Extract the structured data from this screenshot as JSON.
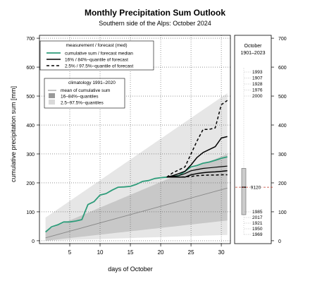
{
  "header": {
    "title": "Monthly Precipitation Sum Outlook",
    "subtitle": "Southern side of the Alps: October 2024"
  },
  "legend_measure": {
    "title": "measurement / forecast (med)",
    "items": [
      "cumulative sum / forecast median",
      "16% / 84%–quantile of forecast",
      "2.5% / 97.5%–quantile of forecast"
    ]
  },
  "legend_clim": {
    "title": "climatology 1991–2020",
    "items": [
      "mean of cumulative sum",
      "16–84%–quantiles",
      "2.5–97.5%–quantiles"
    ]
  },
  "side_panel": {
    "header_line1": "October",
    "header_line2": "1901–2023",
    "median_label": "9120",
    "top_years": [
      "1993",
      "1907",
      "1928",
      "1976",
      "2000"
    ],
    "bottom_years": [
      "1985",
      "2017",
      "1921",
      "1950",
      "1969"
    ]
  },
  "colors": {
    "measurement": "#2e9c7a",
    "forecast": "#000000",
    "clim_mean": "#888888",
    "clim_inner": "#c8c8c8",
    "clim_outer": "#e6e6e6",
    "median_marker": "#c0392b"
  },
  "chart_data": {
    "type": "line",
    "xlabel": "days of October",
    "ylabel": "cumulative precipitation sum [mm]",
    "xlim": [
      0,
      31.5
    ],
    "ylim": [
      -10,
      710
    ],
    "x_ticks": [
      5,
      10,
      15,
      20,
      25,
      30
    ],
    "y_ticks": [
      0,
      100,
      200,
      300,
      400,
      500,
      600,
      700
    ],
    "grid": true,
    "series": [
      {
        "name": "cumulative sum / forecast median",
        "x": [
          1,
          2,
          3,
          4,
          5,
          6,
          7,
          8,
          9,
          10,
          11,
          12,
          13,
          14,
          15,
          16,
          17,
          18,
          19,
          20,
          21,
          22,
          23,
          24,
          25,
          26,
          27,
          28,
          29,
          30,
          31
        ],
        "values": [
          30,
          48,
          55,
          65,
          65,
          68,
          73,
          125,
          135,
          158,
          163,
          175,
          185,
          186,
          188,
          195,
          205,
          208,
          215,
          218,
          220,
          222,
          225,
          240,
          255,
          260,
          268,
          272,
          278,
          285,
          290
        ]
      },
      {
        "name": "mean of cumulative sum",
        "x": [
          1,
          31
        ],
        "values": [
          10,
          182
        ]
      },
      {
        "name": "16% / 84%–quantile of forecast (upper)",
        "x": [
          21,
          22,
          23,
          24,
          25,
          26,
          27,
          28,
          29,
          30,
          31
        ],
        "values": [
          220,
          225,
          232,
          240,
          262,
          288,
          305,
          315,
          325,
          355,
          360
        ]
      },
      {
        "name": "16% / 84%–quantile of forecast (lower)",
        "x": [
          21,
          22,
          23,
          24,
          25,
          26,
          27,
          28,
          29,
          30,
          31
        ],
        "values": [
          220,
          220,
          220,
          220,
          228,
          232,
          235,
          237,
          238,
          240,
          242
        ]
      },
      {
        "name": "2.5% / 97.5%–quantile of forecast (upper)",
        "x": [
          21,
          22,
          23,
          24,
          25,
          26,
          27,
          28,
          29,
          30,
          31
        ],
        "values": [
          220,
          235,
          245,
          255,
          300,
          345,
          385,
          385,
          390,
          470,
          485
        ]
      },
      {
        "name": "2.5% / 97.5%–quantile of forecast (lower)",
        "x": [
          21,
          22,
          23,
          24,
          25,
          26,
          27,
          28,
          29,
          30,
          31
        ],
        "values": [
          220,
          220,
          220,
          221,
          222,
          225,
          226,
          227,
          227,
          228,
          228
        ]
      },
      {
        "name": "forecast median",
        "x": [
          21,
          22,
          23,
          24,
          25,
          26,
          27,
          28,
          29,
          30,
          31
        ],
        "values": [
          220,
          222,
          225,
          232,
          242,
          246,
          250,
          252,
          254,
          256,
          258
        ]
      }
    ],
    "clim_inner_band": {
      "x": [
        1,
        31
      ],
      "lower": [
        0,
        70
      ],
      "upper": [
        35,
        300
      ]
    },
    "clim_outer_band": {
      "x": [
        1,
        31
      ],
      "lower": [
        0,
        20
      ],
      "upper": [
        80,
        510
      ]
    },
    "side_boxplot": {
      "median": 185,
      "q1": 90,
      "q3": 250
    }
  }
}
